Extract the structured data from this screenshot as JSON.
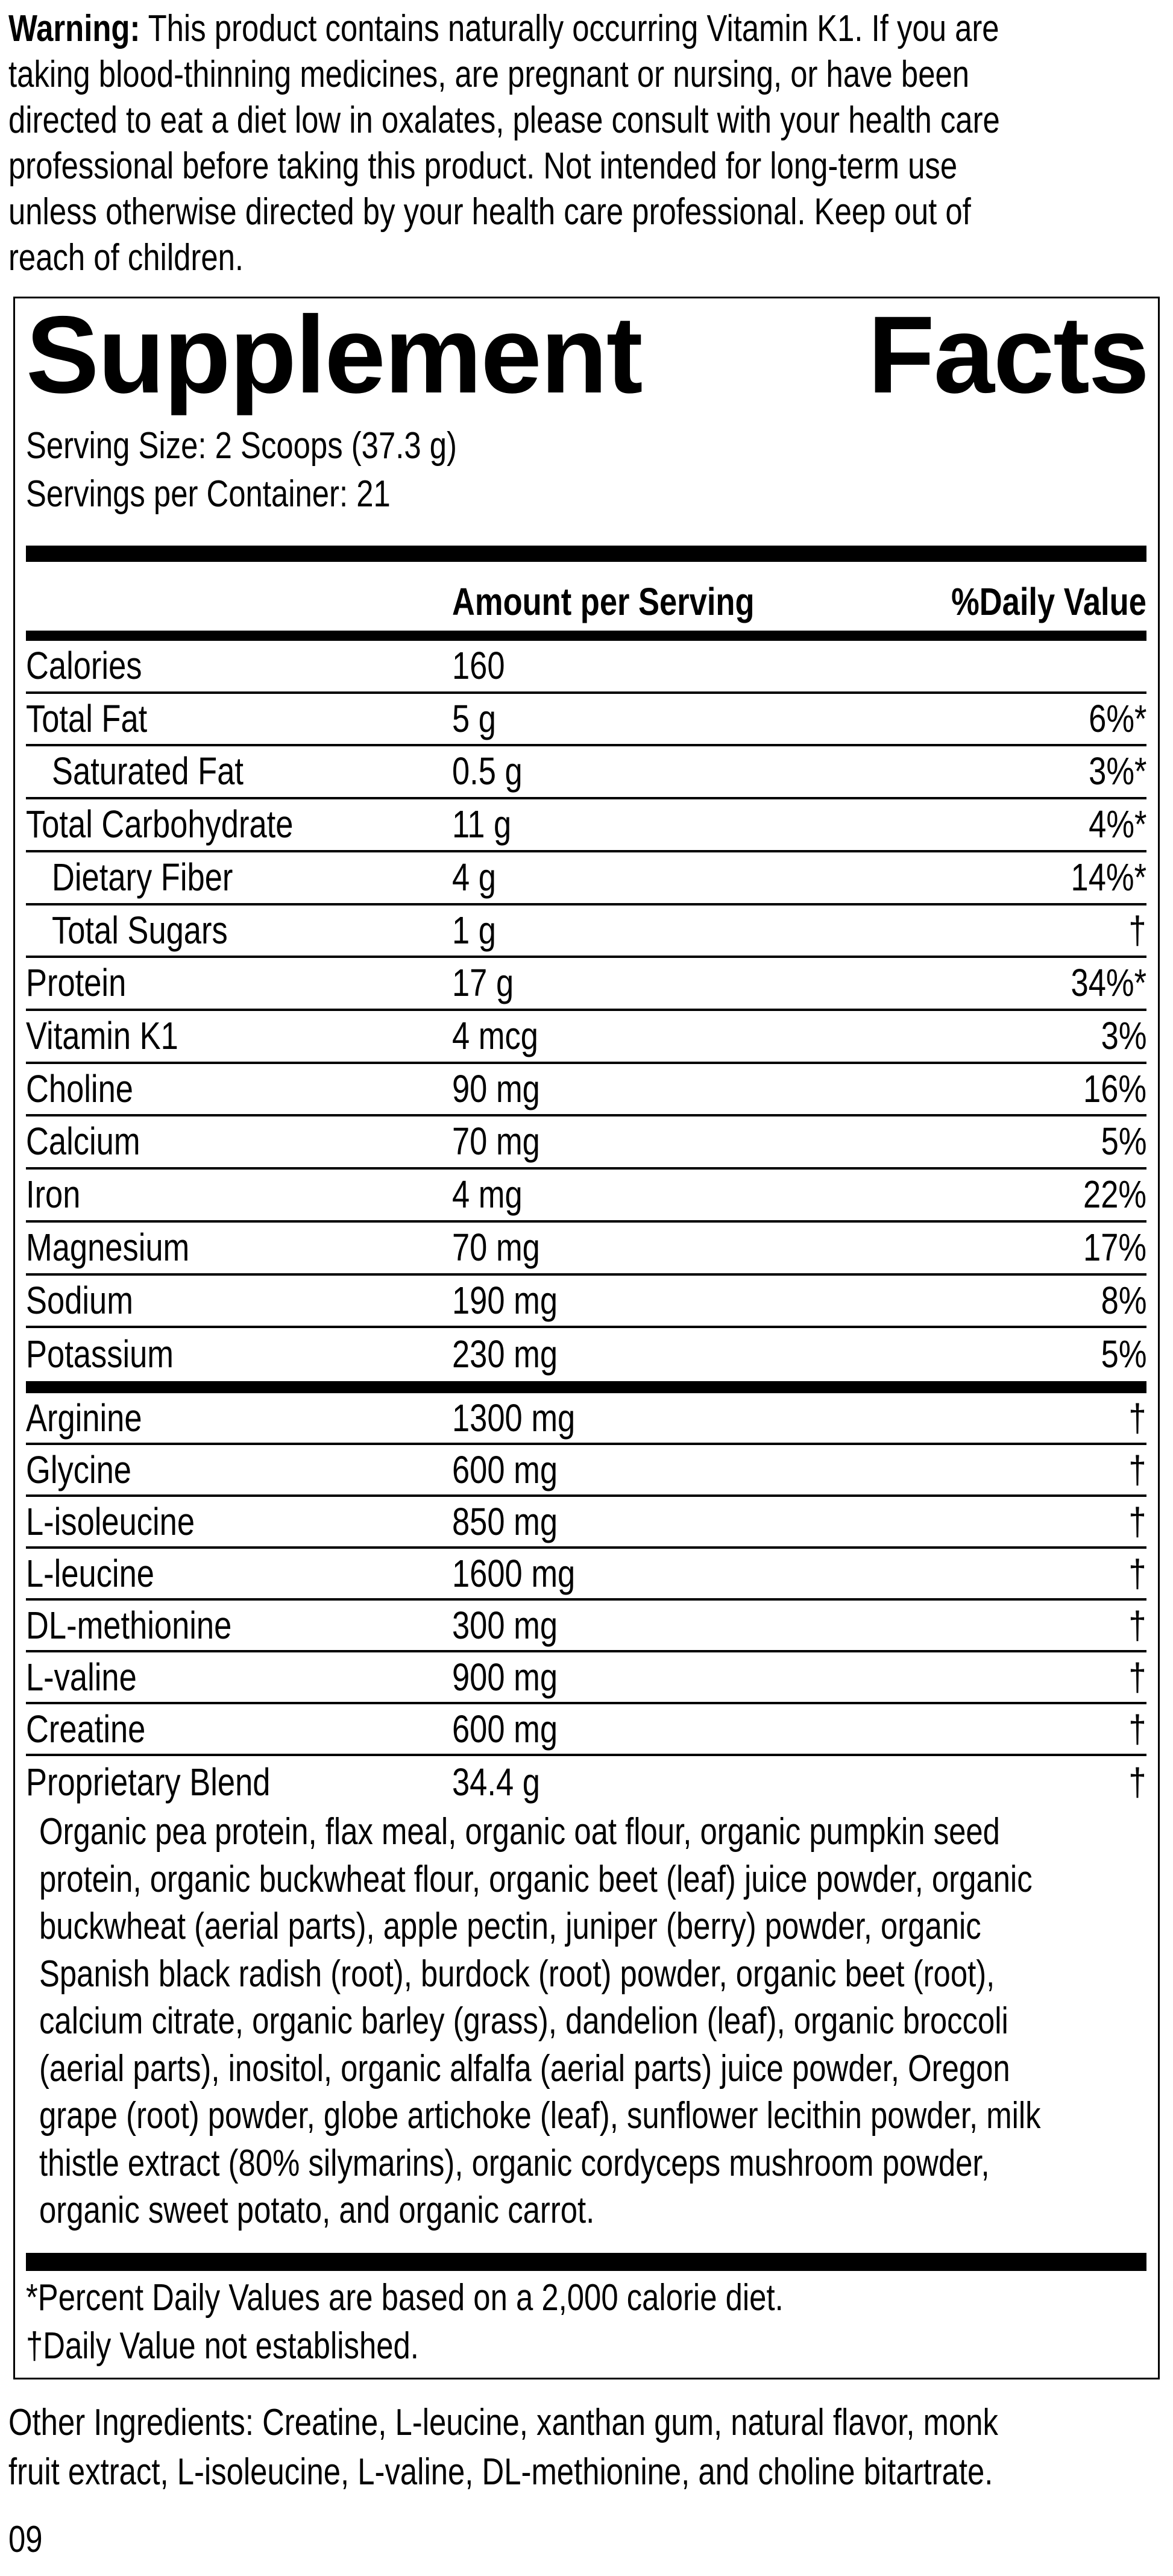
{
  "warning": {
    "label": "Warning:",
    "lines": [
      " This product contains naturally occurring Vitamin K1. If you are",
      "taking blood-thinning medicines, are pregnant or nursing, or have been",
      "directed to eat a diet low in oxalates, please consult with your health care",
      "professional before taking this product. Not intended for long-term use",
      "unless otherwise directed by your health care professional. Keep out of",
      "reach of children."
    ]
  },
  "facts": {
    "title_left": "Supplement",
    "title_right": "Facts",
    "serving_size": "Serving Size: 2 Scoops (37.3 g)",
    "servings_per_container": "Servings per Container: 21",
    "header_amount": "Amount per Serving",
    "header_dv": "%Daily Value",
    "nutrients": [
      {
        "name": "Calories",
        "amount": "160",
        "dv": "",
        "indent": false
      },
      {
        "name": "Total Fat",
        "amount": "5 g",
        "dv": "6%*",
        "indent": false
      },
      {
        "name": "Saturated Fat",
        "amount": "0.5 g",
        "dv": "3%*",
        "indent": true
      },
      {
        "name": "Total Carbohydrate",
        "amount": "11 g",
        "dv": "4%*",
        "indent": false
      },
      {
        "name": "Dietary Fiber",
        "amount": "4 g",
        "dv": "14%*",
        "indent": true
      },
      {
        "name": "Total Sugars",
        "amount": "1 g",
        "dv": "†",
        "indent": true
      },
      {
        "name": "Protein",
        "amount": "17 g",
        "dv": "34%*",
        "indent": false
      },
      {
        "name": "Vitamin K1",
        "amount": "4 mcg",
        "dv": "3%",
        "indent": false
      },
      {
        "name": "Choline",
        "amount": "90 mg",
        "dv": "16%",
        "indent": false
      },
      {
        "name": "Calcium",
        "amount": "70 mg",
        "dv": "5%",
        "indent": false
      },
      {
        "name": "Iron",
        "amount": "4 mg",
        "dv": "22%",
        "indent": false
      },
      {
        "name": "Magnesium",
        "amount": "70 mg",
        "dv": "17%",
        "indent": false
      },
      {
        "name": "Sodium",
        "amount": "190 mg",
        "dv": "8%",
        "indent": false
      },
      {
        "name": "Potassium",
        "amount": "230 mg",
        "dv": "5%",
        "indent": false
      }
    ],
    "other_nutrients": [
      {
        "name": "Arginine",
        "amount": "1300 mg",
        "dv": "†"
      },
      {
        "name": "Glycine",
        "amount": "600 mg",
        "dv": "†"
      },
      {
        "name": "L-isoleucine",
        "amount": "850 mg",
        "dv": "†"
      },
      {
        "name": "L-leucine",
        "amount": "1600 mg",
        "dv": "†"
      },
      {
        "name": "DL-methionine",
        "amount": "300 mg",
        "dv": "†"
      },
      {
        "name": "L-valine",
        "amount": "900 mg",
        "dv": "†"
      },
      {
        "name": "Creatine",
        "amount": "600 mg",
        "dv": "†"
      },
      {
        "name": "Proprietary Blend",
        "amount": "34.4 g",
        "dv": "†"
      }
    ],
    "blend_lines": [
      "Organic pea protein, flax meal, organic oat flour, organic pumpkin seed",
      "protein, organic buckwheat flour, organic beet (leaf) juice powder, organic",
      "buckwheat (aerial parts), apple pectin, juniper (berry) powder, organic",
      "Spanish black radish (root), burdock (root) powder, organic beet (root),",
      "calcium citrate, organic barley (grass), dandelion (leaf), organic broccoli",
      "(aerial parts), inositol, organic alfalfa (aerial parts) juice powder, Oregon",
      "grape (root) powder, globe artichoke (leaf), sunflower lecithin powder, milk",
      "thistle extract (80% silymarins), organic cordyceps mushroom powder,",
      "organic sweet potato, and organic carrot."
    ],
    "footnotes": [
      "*Percent Daily Values are based on a 2,000 calorie diet.",
      "†Daily Value not established."
    ]
  },
  "other_ingredients_lines": [
    "Other Ingredients: Creatine, L-leucine, xanthan gum, natural flavor, monk",
    "fruit extract, L-isoleucine, L-valine, DL-methionine, and choline bitartrate."
  ],
  "code": "09"
}
